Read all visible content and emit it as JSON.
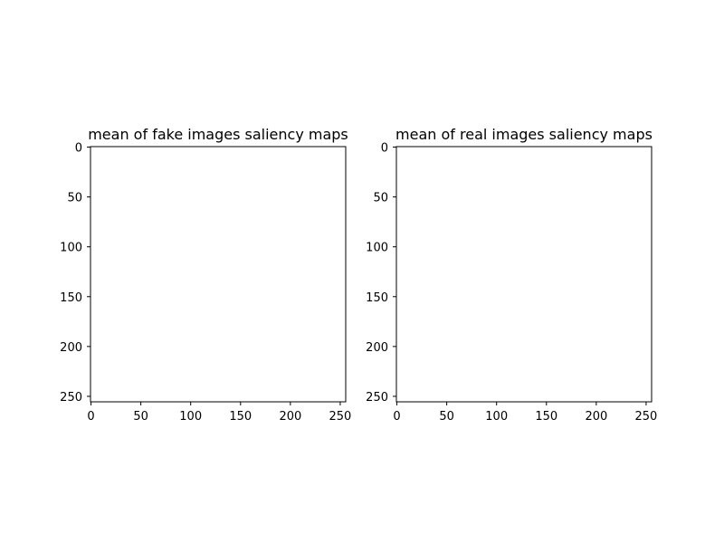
{
  "chart_data": [
    {
      "type": "heatmap",
      "title": "mean of fake images saliency maps",
      "xlim": [
        0,
        255
      ],
      "ylim": [
        255,
        0
      ],
      "x_ticks": [
        0,
        50,
        100,
        150,
        200,
        250
      ],
      "y_ticks": [
        0,
        50,
        100,
        150,
        200,
        250
      ],
      "values": "blank",
      "grid": false
    },
    {
      "type": "heatmap",
      "title": "mean of real images saliency maps",
      "xlim": [
        0,
        255
      ],
      "ylim": [
        255,
        0
      ],
      "x_ticks": [
        0,
        50,
        100,
        150,
        200,
        250
      ],
      "y_ticks": [
        0,
        50,
        100,
        150,
        200,
        250
      ],
      "values": "blank",
      "grid": false
    }
  ]
}
